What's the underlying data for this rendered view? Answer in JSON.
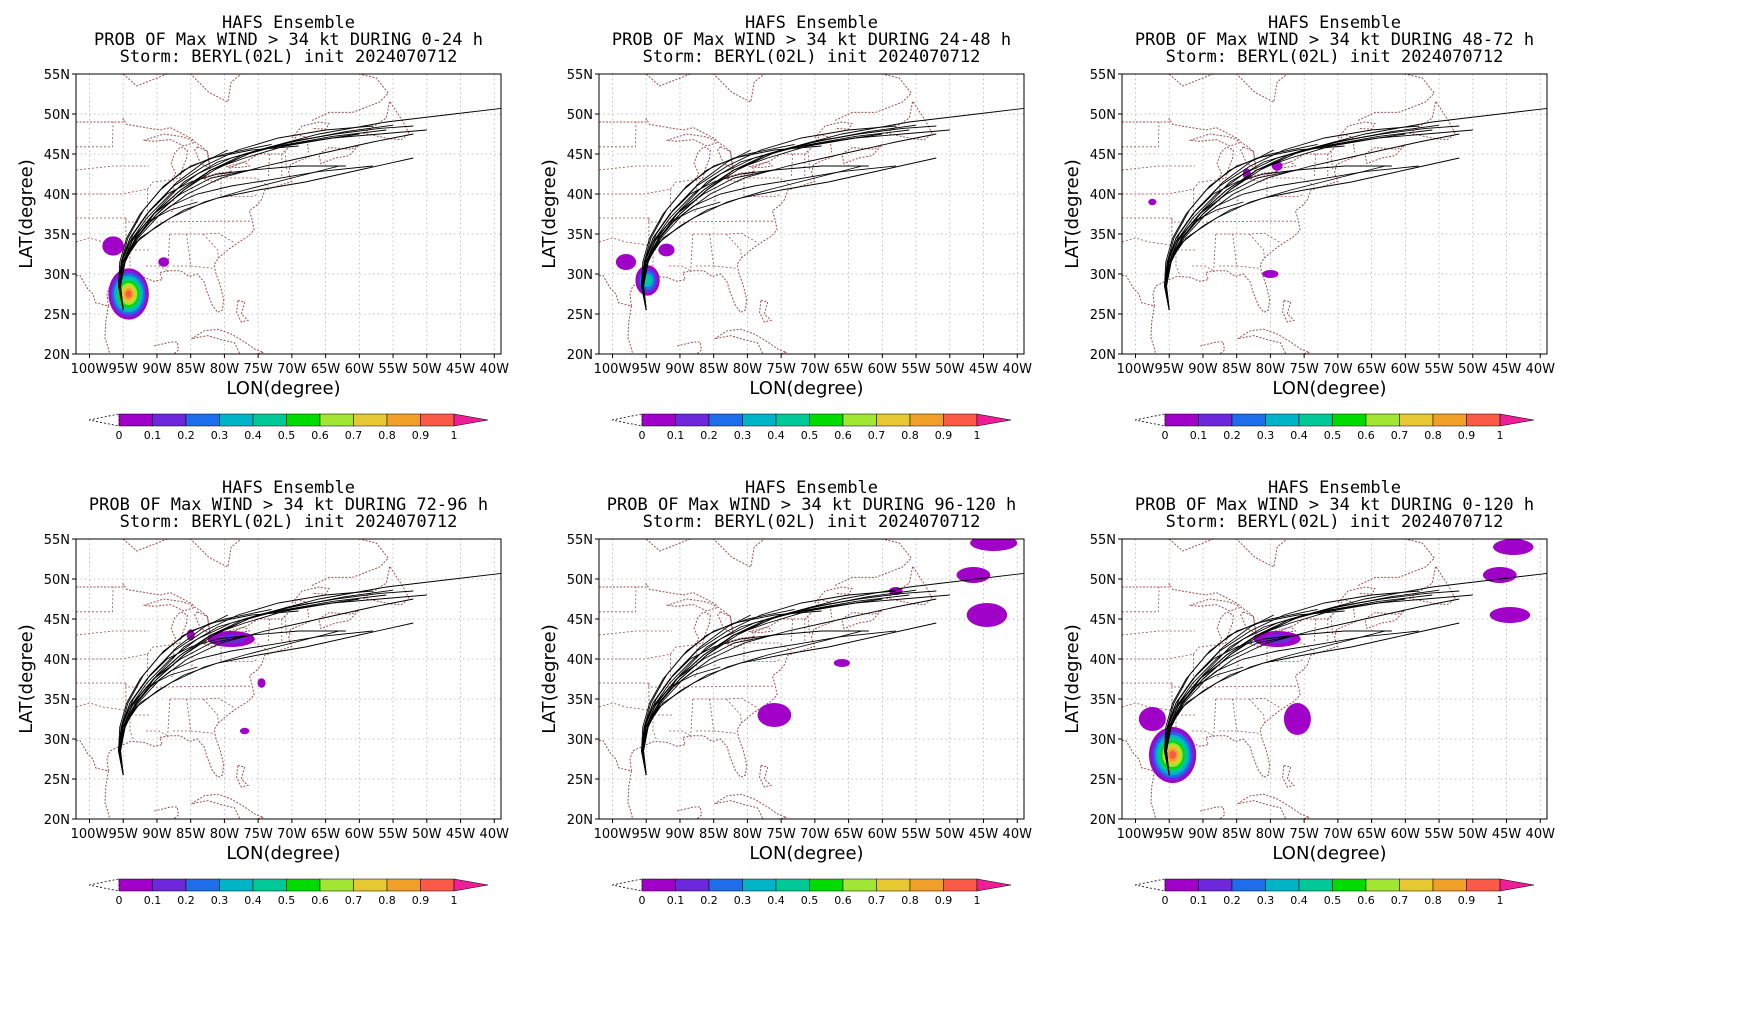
{
  "figure": {
    "panels": [
      {
        "title1": "HAFS Ensemble",
        "title2": "PROB OF Max WIND > 34 kt DURING  0-24 h",
        "title3": "Storm: BERYL(02L) init 2024070712",
        "blobs": [
          {
            "lon": -94.2,
            "lat": 27.5,
            "rx": 3.0,
            "ry": 3.2,
            "p": 0.95
          },
          {
            "lon": -96.5,
            "lat": 33.5,
            "rx": 1.6,
            "ry": 1.2,
            "p": 0.08
          },
          {
            "lon": -89.0,
            "lat": 31.5,
            "rx": 0.8,
            "ry": 0.6,
            "p": 0.05
          }
        ]
      },
      {
        "title1": "HAFS Ensemble",
        "title2": "PROB OF Max WIND > 34 kt DURING 24-48 h",
        "title3": "Storm: BERYL(02L) init 2024070712",
        "blobs": [
          {
            "lon": -94.8,
            "lat": 29.2,
            "rx": 1.8,
            "ry": 1.9,
            "p": 0.4
          },
          {
            "lon": -98.0,
            "lat": 31.5,
            "rx": 1.5,
            "ry": 1.0,
            "p": 0.06
          },
          {
            "lon": -92.0,
            "lat": 33.0,
            "rx": 1.2,
            "ry": 0.8,
            "p": 0.06
          }
        ]
      },
      {
        "title1": "HAFS Ensemble",
        "title2": "PROB OF Max WIND > 34 kt DURING 48-72 h",
        "title3": "Storm: BERYL(02L) init 2024070712",
        "blobs": [
          {
            "lon": -83.5,
            "lat": 42.5,
            "rx": 0.6,
            "ry": 0.7,
            "p": 0.06
          },
          {
            "lon": -79.0,
            "lat": 43.5,
            "rx": 0.8,
            "ry": 0.6,
            "p": 0.06
          },
          {
            "lon": -80.0,
            "lat": 30.0,
            "rx": 1.2,
            "ry": 0.5,
            "p": 0.05
          },
          {
            "lon": -97.5,
            "lat": 39.0,
            "rx": 0.6,
            "ry": 0.4,
            "p": 0.05
          }
        ]
      },
      {
        "title1": "HAFS Ensemble",
        "title2": "PROB OF Max WIND > 34 kt DURING 72-96 h",
        "title3": "Storm: BERYL(02L) init 2024070712",
        "blobs": [
          {
            "lon": -79.0,
            "lat": 42.5,
            "rx": 3.5,
            "ry": 1.0,
            "p": 0.1
          },
          {
            "lon": -85.0,
            "lat": 43.0,
            "rx": 0.6,
            "ry": 0.7,
            "p": 0.06
          },
          {
            "lon": -74.5,
            "lat": 37.0,
            "rx": 0.6,
            "ry": 0.6,
            "p": 0.05
          },
          {
            "lon": -77.0,
            "lat": 31.0,
            "rx": 0.7,
            "ry": 0.4,
            "p": 0.05
          }
        ]
      },
      {
        "title1": "HAFS Ensemble",
        "title2": "PROB OF Max WIND > 34 kt DURING 96-120 h",
        "title3": "Storm: BERYL(02L) init 2024070712",
        "blobs": [
          {
            "lon": -43.5,
            "lat": 54.5,
            "rx": 3.5,
            "ry": 1.0,
            "p": 0.08
          },
          {
            "lon": -46.5,
            "lat": 50.5,
            "rx": 2.5,
            "ry": 1.0,
            "p": 0.08
          },
          {
            "lon": -44.5,
            "lat": 45.5,
            "rx": 3.0,
            "ry": 1.5,
            "p": 0.08
          },
          {
            "lon": -76.0,
            "lat": 33.0,
            "rx": 2.5,
            "ry": 1.5,
            "p": 0.07
          },
          {
            "lon": -66.0,
            "lat": 39.5,
            "rx": 1.2,
            "ry": 0.5,
            "p": 0.05
          },
          {
            "lon": -58.0,
            "lat": 48.5,
            "rx": 1.0,
            "ry": 0.5,
            "p": 0.05
          }
        ]
      },
      {
        "title1": "HAFS Ensemble",
        "title2": "PROB OF Max WIND > 34 kt DURING 0-120 h",
        "title3": "Storm: BERYL(02L) init 2024070712",
        "blobs": [
          {
            "lon": -94.5,
            "lat": 28.0,
            "rx": 3.5,
            "ry": 3.5,
            "p": 0.95
          },
          {
            "lon": -97.5,
            "lat": 32.5,
            "rx": 2.0,
            "ry": 1.5,
            "p": 0.08
          },
          {
            "lon": -79.0,
            "lat": 42.5,
            "rx": 3.5,
            "ry": 1.0,
            "p": 0.15
          },
          {
            "lon": -76.0,
            "lat": 32.5,
            "rx": 2.0,
            "ry": 2.0,
            "p": 0.07
          },
          {
            "lon": -44.0,
            "lat": 54.0,
            "rx": 3.0,
            "ry": 1.0,
            "p": 0.08
          },
          {
            "lon": -46.0,
            "lat": 50.5,
            "rx": 2.5,
            "ry": 1.0,
            "p": 0.08
          },
          {
            "lon": -44.5,
            "lat": 45.5,
            "rx": 3.0,
            "ry": 1.0,
            "p": 0.08
          }
        ]
      }
    ],
    "xlabel": "LON(degree)",
    "ylabel": "LAT(degree)",
    "lon_ticks": [
      "100W",
      "95W",
      "90W",
      "85W",
      "80W",
      "75W",
      "70W",
      "65W",
      "60W",
      "55W",
      "50W",
      "45W",
      "40W"
    ],
    "lat_ticks": [
      "20N",
      "25N",
      "30N",
      "35N",
      "40N",
      "45N",
      "50N",
      "55N"
    ],
    "lon_range": [
      -102,
      -39
    ],
    "lat_range": [
      20,
      55
    ],
    "colorbar": {
      "labels": [
        "0",
        "0.1",
        "0.2",
        "0.3",
        "0.4",
        "0.5",
        "0.6",
        "0.7",
        "0.8",
        "0.9",
        "1"
      ],
      "colors": [
        "#a000c8",
        "#6e28dc",
        "#1e6eeb",
        "#00b4c8",
        "#00c896",
        "#00dc00",
        "#a0e632",
        "#e6c832",
        "#f0a028",
        "#fa5a46",
        "#f01e96"
      ]
    },
    "track_color": "#000000",
    "border_color": "#a05050",
    "grid_color": "#b4b4b4"
  },
  "chart_data": {
    "type": "ensemble track and probability map",
    "ensemble_tracks": [
      [
        [
          -95.0,
          25.5
        ],
        [
          -95.5,
          28.5
        ],
        [
          -95.0,
          31.5
        ],
        [
          -93.5,
          34.5
        ],
        [
          -90.5,
          37.5
        ],
        [
          -86.5,
          40.5
        ],
        [
          -82.0,
          43.0
        ],
        [
          -77.0,
          45.0
        ],
        [
          -70.0,
          46.5
        ],
        [
          -62.0,
          47.8
        ],
        [
          -55.0,
          48.6
        ]
      ],
      [
        [
          -95.0,
          25.5
        ],
        [
          -95.6,
          28.5
        ],
        [
          -95.2,
          31.5
        ],
        [
          -94.0,
          34.0
        ],
        [
          -91.5,
          37.0
        ],
        [
          -88.0,
          40.0
        ],
        [
          -84.0,
          42.5
        ],
        [
          -79.0,
          44.5
        ],
        [
          -72.0,
          46.0
        ],
        [
          -64.0,
          47.2
        ],
        [
          -56.0,
          48.0
        ]
      ],
      [
        [
          -95.0,
          25.5
        ],
        [
          -95.4,
          28.5
        ],
        [
          -94.7,
          31.5
        ],
        [
          -93.0,
          34.5
        ],
        [
          -90.0,
          38.0
        ],
        [
          -86.0,
          41.5
        ],
        [
          -81.0,
          44.0
        ],
        [
          -75.0,
          45.5
        ],
        [
          -68.0,
          46.5
        ],
        [
          -60.0,
          47.5
        ]
      ],
      [
        [
          -95.0,
          25.5
        ],
        [
          -95.7,
          28.5
        ],
        [
          -95.3,
          31.5
        ],
        [
          -94.3,
          34.5
        ],
        [
          -92.0,
          38.0
        ],
        [
          -89.0,
          41.0
        ],
        [
          -85.0,
          43.5
        ],
        [
          -80.0,
          45.0
        ],
        [
          -73.0,
          46.2
        ]
      ],
      [
        [
          -95.0,
          25.5
        ],
        [
          -95.5,
          28.5
        ],
        [
          -95.0,
          31.5
        ],
        [
          -93.5,
          34.0
        ],
        [
          -91.0,
          36.5
        ],
        [
          -88.0,
          38.5
        ],
        [
          -84.0,
          40.0
        ],
        [
          -79.0,
          41.0
        ],
        [
          -73.0,
          41.8
        ],
        [
          -66.0,
          42.8
        ],
        [
          -58.0,
          43.5
        ]
      ],
      [
        [
          -95.0,
          25.5
        ],
        [
          -95.5,
          28.5
        ],
        [
          -95.0,
          31.5
        ],
        [
          -93.0,
          34.0
        ],
        [
          -90.0,
          36.0
        ],
        [
          -86.0,
          38.0
        ],
        [
          -81.0,
          39.5
        ],
        [
          -75.0,
          40.5
        ],
        [
          -68.0,
          41.5
        ],
        [
          -60.0,
          43.0
        ],
        [
          -52.0,
          44.5
        ]
      ],
      [
        [
          -95.0,
          25.5
        ],
        [
          -95.5,
          28.5
        ],
        [
          -95.0,
          32.0
        ],
        [
          -93.5,
          35.0
        ],
        [
          -91.0,
          38.0
        ],
        [
          -87.5,
          41.0
        ],
        [
          -83.0,
          43.5
        ],
        [
          -78.0,
          45.5
        ],
        [
          -72.0,
          47.0
        ],
        [
          -65.0,
          48.0
        ],
        [
          -58.0,
          48.5
        ]
      ],
      [
        [
          -95.0,
          25.5
        ],
        [
          -95.6,
          28.5
        ],
        [
          -95.0,
          31.5
        ],
        [
          -92.5,
          34.5
        ],
        [
          -88.0,
          37.0
        ],
        [
          -83.0,
          39.0
        ],
        [
          -77.0,
          40.5
        ],
        [
          -70.0,
          42.0
        ],
        [
          -63.0,
          43.5
        ]
      ],
      [
        [
          -95.0,
          25.5
        ],
        [
          -95.4,
          28.5
        ],
        [
          -94.8,
          31.5
        ],
        [
          -93.0,
          34.5
        ],
        [
          -90.0,
          37.5
        ],
        [
          -86.0,
          40.5
        ],
        [
          -82.0,
          43.0
        ],
        [
          -77.0,
          44.5
        ],
        [
          -71.0,
          46.0
        ],
        [
          -64.0,
          47.0
        ],
        [
          -57.0,
          47.5
        ],
        [
          -50.0,
          48.0
        ]
      ],
      [
        [
          -95.0,
          25.5
        ],
        [
          -95.7,
          28.5
        ],
        [
          -95.5,
          31.5
        ],
        [
          -94.5,
          34.5
        ],
        [
          -92.5,
          37.5
        ],
        [
          -89.5,
          40.5
        ],
        [
          -86.0,
          43.0
        ],
        [
          -82.0,
          44.5
        ],
        [
          -76.0,
          45.5
        ],
        [
          -69.0,
          46.0
        ]
      ],
      [
        [
          -95.0,
          25.5
        ],
        [
          -95.5,
          28.5
        ],
        [
          -95.0,
          31.5
        ],
        [
          -93.5,
          34.5
        ],
        [
          -90.5,
          37.5
        ],
        [
          -86.5,
          40.5
        ],
        [
          -82.0,
          43.0
        ],
        [
          -75.0,
          45.5
        ],
        [
          -66.0,
          47.5
        ],
        [
          -56.0,
          49.0
        ],
        [
          -46.0,
          50.0
        ],
        [
          -39.0,
          50.7
        ]
      ],
      [
        [
          -95.0,
          25.5
        ],
        [
          -95.5,
          28.5
        ],
        [
          -95.2,
          31.5
        ],
        [
          -94.0,
          34.5
        ],
        [
          -91.5,
          37.5
        ],
        [
          -88.5,
          40.0
        ],
        [
          -85.0,
          41.5
        ],
        [
          -81.0,
          42.5
        ],
        [
          -76.0,
          43.0
        ]
      ],
      [
        [
          -95.0,
          25.5
        ],
        [
          -95.5,
          28.5
        ],
        [
          -94.8,
          31.5
        ],
        [
          -92.8,
          34.5
        ],
        [
          -89.5,
          37.5
        ],
        [
          -85.5,
          40.0
        ],
        [
          -80.5,
          42.0
        ],
        [
          -74.0,
          43.5
        ],
        [
          -66.0,
          45.0
        ],
        [
          -58.0,
          46.5
        ],
        [
          -52.0,
          47.5
        ]
      ],
      [
        [
          -95.0,
          25.5
        ],
        [
          -95.5,
          28.5
        ],
        [
          -95.0,
          31.5
        ],
        [
          -93.8,
          34.0
        ],
        [
          -91.5,
          36.5
        ],
        [
          -88.0,
          38.0
        ],
        [
          -84.0,
          39.0
        ]
      ],
      [
        [
          -95.0,
          25.5
        ],
        [
          -95.6,
          28.5
        ],
        [
          -95.3,
          31.5
        ],
        [
          -94.0,
          34.5
        ],
        [
          -91.0,
          38.0
        ],
        [
          -87.0,
          41.5
        ],
        [
          -83.0,
          44.0
        ],
        [
          -79.5,
          45.5
        ]
      ],
      [
        [
          -95.0,
          25.5
        ],
        [
          -95.5,
          28.5
        ],
        [
          -95.0,
          31.5
        ],
        [
          -93.5,
          34.5
        ],
        [
          -90.5,
          37.5
        ],
        [
          -86.5,
          40.0
        ],
        [
          -82.0,
          42.0
        ],
        [
          -76.0,
          43.0
        ],
        [
          -69.0,
          43.5
        ],
        [
          -62.0,
          43.5
        ]
      ],
      [
        [
          -95.0,
          25.5
        ],
        [
          -95.4,
          28.5
        ],
        [
          -94.8,
          31.5
        ],
        [
          -93.2,
          34.5
        ],
        [
          -90.0,
          37.5
        ],
        [
          -86.0,
          40.5
        ],
        [
          -81.5,
          43.0
        ],
        [
          -76.5,
          45.0
        ],
        [
          -70.5,
          46.5
        ],
        [
          -63.5,
          47.5
        ],
        [
          -57.0,
          48.2
        ],
        [
          -52.0,
          48.5
        ]
      ]
    ]
  }
}
